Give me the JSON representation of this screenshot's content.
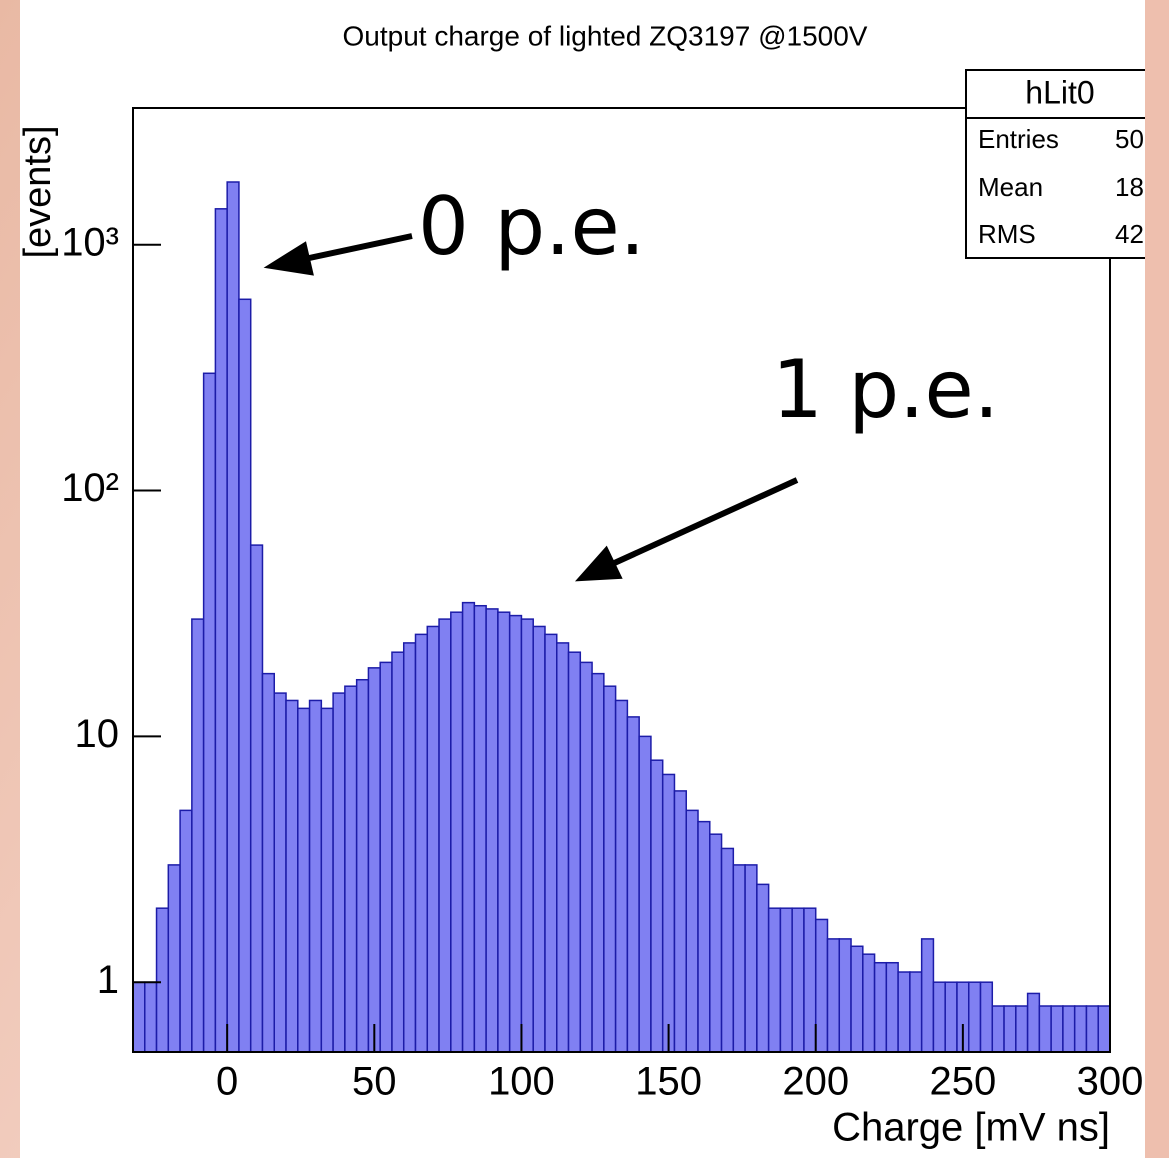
{
  "chart_data": {
    "type": "histogram",
    "title": "Output charge of lighted ZQ3197  @1500V",
    "xlabel": "Charge [mV ns]",
    "ylabel": "[events]",
    "log_y": true,
    "color": "#8080f2",
    "edge_color": "#1c1ca8",
    "bins": [
      -32,
      -28,
      -24,
      -20,
      -16,
      -12,
      -8,
      -4,
      0,
      4,
      8,
      12,
      16,
      20,
      24,
      28,
      32,
      36,
      40,
      44,
      48,
      52,
      56,
      60,
      64,
      68,
      72,
      76,
      80,
      84,
      88,
      92,
      96,
      100,
      104,
      108,
      112,
      116,
      120,
      124,
      128,
      132,
      136,
      140,
      144,
      148,
      152,
      156,
      160,
      164,
      168,
      172,
      176,
      180,
      184,
      188,
      192,
      196,
      200,
      204,
      208,
      212,
      216,
      220,
      224,
      228,
      232,
      236,
      240,
      244,
      248,
      252,
      256,
      260,
      264,
      268,
      272,
      276,
      280,
      284,
      288,
      292,
      296,
      300
    ],
    "values": [
      1,
      1,
      2,
      3,
      5,
      30,
      300,
      1400,
      1800,
      600,
      60,
      18,
      15,
      14,
      13,
      14,
      13,
      15,
      16,
      17,
      19,
      20,
      22,
      24,
      26,
      28,
      30,
      32,
      35,
      34,
      33,
      32,
      31,
      30,
      28,
      26,
      24,
      22,
      20,
      18,
      16,
      14,
      12,
      10,
      8,
      7,
      6,
      5,
      4.5,
      4,
      3.5,
      3,
      3,
      2.5,
      2,
      2,
      2,
      2,
      1.8,
      1.5,
      1.5,
      1.4,
      1.3,
      1.2,
      1.2,
      1.1,
      1.1,
      1.5,
      1,
      1,
      1,
      1,
      1,
      0.8,
      0.8,
      0.8,
      0.9,
      0.8,
      0.8,
      0.8,
      0.8,
      0.8,
      0.8
    ],
    "xlim": [
      -32,
      300
    ],
    "xticks": [
      0,
      50,
      100,
      150,
      200,
      250,
      300
    ],
    "ylim": [
      0.52,
      3600
    ],
    "yticks": [
      1,
      10,
      {
        "value": 100,
        "label": "10²"
      },
      {
        "value": 1000,
        "label": "10³"
      }
    ],
    "stats": {
      "title": "hLit0",
      "rows": [
        [
          "Entries",
          "50"
        ],
        [
          "Mean",
          "18"
        ],
        [
          "RMS",
          "42"
        ]
      ]
    },
    "annotations": [
      "0 p.e.",
      "1 p.e."
    ]
  }
}
